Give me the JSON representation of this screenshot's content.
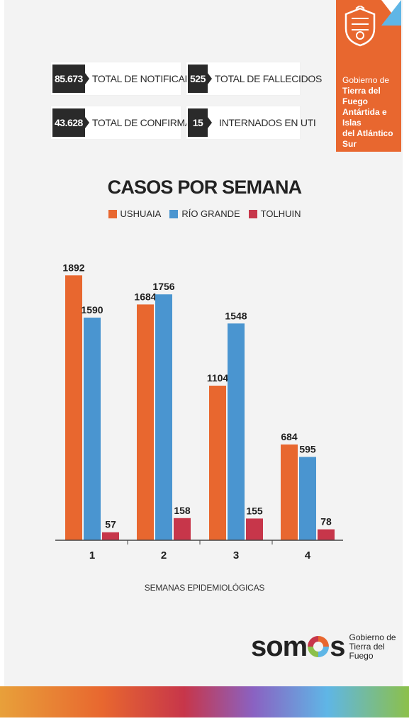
{
  "government": {
    "line1": "Gobierno de",
    "line2": "Tierra del Fuego",
    "line3": "Antártida e Islas",
    "line4": "del Atlántico Sur"
  },
  "stats": [
    {
      "value": "85.673",
      "label": "TOTAL DE NOTIFICADOS"
    },
    {
      "value": "525",
      "label": "TOTAL DE FALLECIDOS"
    },
    {
      "value": "43.628",
      "label": "TOTAL DE CONFIRMADOS"
    },
    {
      "value": "15",
      "label": "INTERNADOS EN UTI"
    }
  ],
  "colors": {
    "ushuaia": "#e8672f",
    "rio_grande": "#4a95d0",
    "tolhuin": "#c7364a"
  },
  "chart_data": {
    "type": "bar",
    "title": "CASOS POR SEMANA",
    "xlabel": "SEMANAS EPIDEMIOLÓGICAS",
    "ylabel": "",
    "categories": [
      "1",
      "2",
      "3",
      "4"
    ],
    "ylim": [
      0,
      2000
    ],
    "grid": false,
    "legend_position": "top-center",
    "series": [
      {
        "name": "USHUAIA",
        "values": [
          1892,
          1684,
          1104,
          684
        ]
      },
      {
        "name": "RÍO GRANDE",
        "values": [
          1590,
          1756,
          1548,
          595
        ]
      },
      {
        "name": "TOLHUIN",
        "values": [
          57,
          158,
          155,
          78
        ]
      }
    ]
  },
  "logo": {
    "word_before": "som",
    "word_after": "s",
    "sub1": "Gobierno de",
    "sub2": "Tierra del Fuego"
  }
}
